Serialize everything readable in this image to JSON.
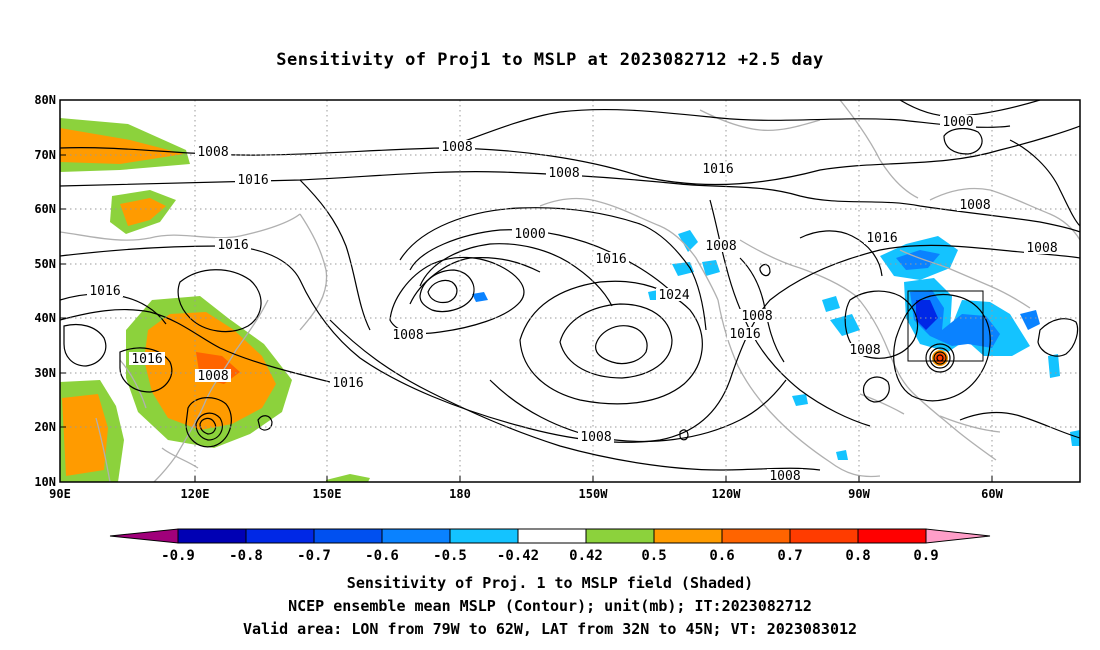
{
  "title": "Sensitivity of Proj1 to MSLP at 2023082712 +2.5 day",
  "map": {
    "lon_labels": [
      "90E",
      "120E",
      "150E",
      "180",
      "150W",
      "120W",
      "90W",
      "60W"
    ],
    "lat_labels": [
      "80N",
      "70N",
      "60N",
      "50N",
      "40N",
      "30N",
      "20N",
      "10N"
    ],
    "contour_labels": [
      "1008",
      "1008",
      "1016",
      "1016",
      "1016",
      "1008",
      "1016",
      "1008",
      "1016",
      "1008",
      "1000",
      "1016",
      "1008",
      "1024",
      "1008",
      "1016",
      "1000",
      "1016",
      "1008",
      "1016",
      "1008",
      "1008",
      "1008",
      "1008"
    ],
    "valid_box": {
      "lon": [
        -79,
        -62
      ],
      "lat": [
        32,
        45
      ]
    }
  },
  "colorbar": {
    "labels": [
      "-0.9",
      "-0.8",
      "-0.7",
      "-0.6",
      "-0.5",
      "-0.42",
      "0.42",
      "0.5",
      "0.6",
      "0.7",
      "0.8",
      "0.9"
    ],
    "colors": [
      "#a0007a",
      "#0000b4",
      "#0028e6",
      "#0050f0",
      "#0a82ff",
      "#14c3ff",
      "#ffffff",
      "#8cd23c",
      "#ff9b00",
      "#ff6400",
      "#ff3c00",
      "#ff0000",
      "#ff9ec8"
    ]
  },
  "captions": {
    "line1": "Sensitivity of Proj. 1 to MSLP field (Shaded)",
    "line2": "NCEP ensemble mean MSLP (Contour); unit(mb); IT:2023082712",
    "line3": "Valid area: LON from 79W to 62W, LAT from 32N to 45N; VT: 2023083012"
  }
}
